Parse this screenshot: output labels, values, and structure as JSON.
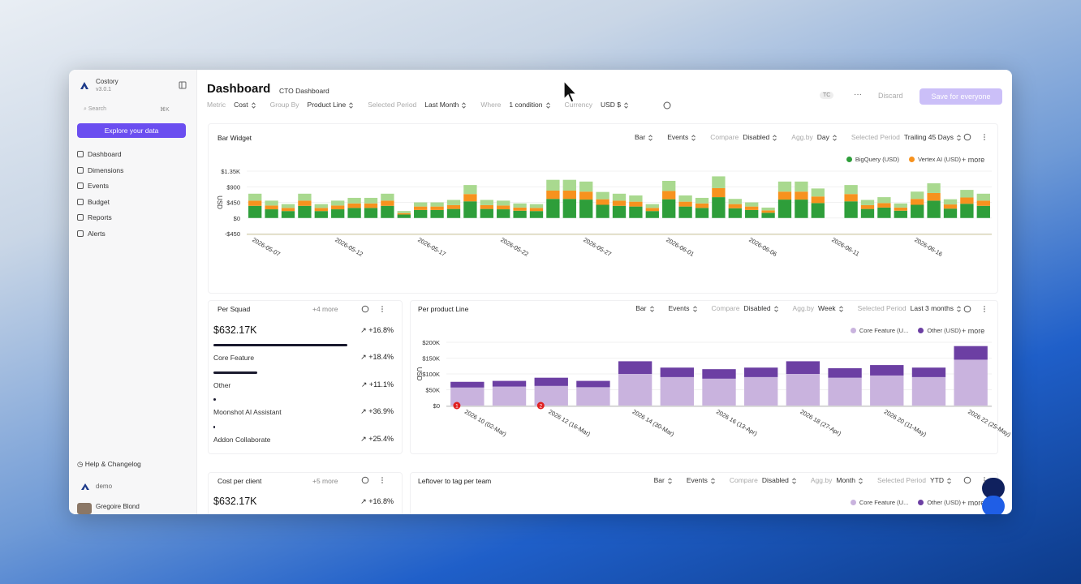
{
  "sidebar": {
    "brand": "Costory",
    "version": "v3.0.1",
    "search": "Search",
    "shortcut": "⌘K",
    "explore": "Explore your data",
    "nav": [
      "Dashboard",
      "Dimensions",
      "Events",
      "Budget",
      "Reports",
      "Alerts"
    ],
    "help": "Help & Changelog",
    "org": "demo",
    "user": "Gregoire Blond"
  },
  "header": {
    "title": "Dashboard",
    "dashboard": "CTO Dashboard",
    "filters": [
      {
        "label": "Metric",
        "value": "Cost"
      },
      {
        "label": "Group By",
        "value": "Product Line"
      },
      {
        "label": "Selected Period",
        "value": "Last Month"
      },
      {
        "label": "Where",
        "value": "1 condition"
      },
      {
        "label": "Currency",
        "value": "USD $"
      }
    ],
    "badge": "TC",
    "discard": "Discard",
    "save": "Save for everyone"
  },
  "widgets": {
    "bar_widget": {
      "title": "Bar Widget",
      "controls": [
        {
          "value": "Bar"
        },
        {
          "value": "Events"
        },
        {
          "label": "Compare",
          "value": "Disabled"
        },
        {
          "label": "Agg.by",
          "value": "Day"
        },
        {
          "label": "Selected Period",
          "value": "Trailing 45 Days"
        }
      ],
      "more": "+ more"
    },
    "per_squad": {
      "title": "Per Squad",
      "more": "+4 more",
      "total": "$632.17K",
      "change": "+16.8%",
      "rows": [
        {
          "name": "Core Feature",
          "change": "+18.4%",
          "value": 100
        },
        {
          "name": "Other",
          "change": "+11.1%",
          "value": 33
        },
        {
          "name": "Moonshot AI Assistant",
          "change": "+36.9%",
          "value": 2
        },
        {
          "name": "Addon Collaborate",
          "change": "+25.4%",
          "value": 1
        }
      ]
    },
    "per_product_line": {
      "title": "Per product Line",
      "controls": [
        {
          "value": "Bar"
        },
        {
          "value": "Events"
        },
        {
          "label": "Compare",
          "value": "Disabled"
        },
        {
          "label": "Agg.by",
          "value": "Week"
        },
        {
          "label": "Selected Period",
          "value": "Last 3 months"
        }
      ],
      "more": "+ more"
    },
    "cost_per_client": {
      "title": "Cost per client",
      "more": "+5 more",
      "total": "$632.17K",
      "change": "+16.8%"
    },
    "leftover": {
      "title": "Leftover to tag per team",
      "controls": [
        {
          "value": "Bar"
        },
        {
          "value": "Events"
        },
        {
          "label": "Compare",
          "value": "Disabled"
        },
        {
          "label": "Agg.by",
          "value": "Month"
        },
        {
          "label": "Selected Period",
          "value": "YTD"
        }
      ],
      "legend": [
        "Core Feature (U...",
        "Other (USD)"
      ],
      "more": "+ more"
    }
  },
  "chart_data": [
    {
      "type": "stacked_bar",
      "ylabel": "USD",
      "categories": [
        "2026-05-07",
        null,
        null,
        null,
        null,
        "2026-05-12",
        null,
        null,
        null,
        null,
        "2026-05-17",
        null,
        null,
        null,
        null,
        "2026-05-22",
        null,
        null,
        null,
        null,
        "2026-05-27",
        null,
        null,
        null,
        null,
        "2026-06-01",
        null,
        null,
        null,
        null,
        "2026-06-06",
        null,
        null,
        null,
        null,
        "2026-06-11",
        null,
        null,
        null,
        null,
        "2026-06-16",
        null,
        null,
        null,
        null
      ],
      "series": [
        {
          "name": "BigQuery (USD)",
          "color": "#2e9e3a",
          "values": [
            350,
            250,
            200,
            350,
            200,
            250,
            290,
            290,
            350,
            100,
            230,
            230,
            260,
            480,
            260,
            250,
            210,
            200,
            550,
            550,
            530,
            380,
            350,
            330,
            200,
            540,
            330,
            290,
            600,
            280,
            230,
            150,
            530,
            530,
            430,
            null,
            480,
            260,
            300,
            210,
            380,
            500,
            270,
            410,
            350
          ]
        },
        {
          "name": "Vertex AI (USD)",
          "color": "#f7921e",
          "values": [
            150,
            110,
            90,
            150,
            90,
            110,
            130,
            130,
            150,
            40,
            100,
            100,
            110,
            210,
            110,
            110,
            90,
            90,
            240,
            240,
            230,
            160,
            150,
            140,
            90,
            240,
            140,
            130,
            260,
            120,
            100,
            70,
            230,
            230,
            190,
            null,
            210,
            110,
            130,
            90,
            170,
            220,
            120,
            180,
            150
          ]
        },
        {
          "color": "#a9d98f",
          "values": [
            200,
            140,
            110,
            200,
            110,
            140,
            160,
            160,
            200,
            60,
            120,
            120,
            150,
            260,
            150,
            140,
            120,
            110,
            310,
            310,
            290,
            210,
            200,
            180,
            110,
            290,
            180,
            160,
            340,
            150,
            120,
            80,
            290,
            290,
            230,
            null,
            260,
            150,
            170,
            120,
            210,
            280,
            150,
            220,
            200
          ]
        }
      ],
      "ylim": [
        -450,
        1350
      ],
      "yticks": [
        {
          "value": 1350,
          "label": "$1.35K"
        },
        {
          "value": 900,
          "label": "$900"
        },
        {
          "value": 450,
          "label": "$450"
        },
        {
          "value": 0,
          "label": "$0"
        },
        {
          "value": -450,
          "label": "-$450"
        }
      ]
    },
    {
      "type": "stacked_bar",
      "ylabel": "USD",
      "categories": [
        "2026 10 (02-Mar)",
        null,
        "2026 12 (16-Mar)",
        null,
        "2026 14 (30-Mar)",
        null,
        "2026 16 (13-Apr)",
        null,
        "2026 18 (27-Apr)",
        null,
        "2026 20 (11-May)",
        null,
        "2026 22 (25-May)"
      ],
      "series": [
        {
          "name": "Core Feature (U...",
          "color": "#c9b3de",
          "values": [
            57000,
            60000,
            62000,
            58000,
            100000,
            90000,
            85000,
            90000,
            100000,
            88000,
            95000,
            90000,
            145000
          ]
        },
        {
          "name": "Other (USD)",
          "color": "#6c3fa3",
          "values": [
            18000,
            18000,
            26000,
            20000,
            40000,
            30000,
            30000,
            30000,
            40000,
            30000,
            33000,
            30000,
            43000
          ]
        }
      ],
      "ylim": [
        0,
        200000
      ],
      "yticks": [
        {
          "value": 200000,
          "label": "$200K"
        },
        {
          "value": 150000,
          "label": "$150K"
        },
        {
          "value": 100000,
          "label": "$100K"
        },
        {
          "value": 50000,
          "label": "$50K"
        },
        {
          "value": 0,
          "label": "$0"
        }
      ],
      "annotations": [
        {
          "category": "2026 10 (02-Mar)",
          "text": "1"
        },
        {
          "category": "2026 12 (16-Mar)",
          "text": "2"
        }
      ]
    }
  ]
}
